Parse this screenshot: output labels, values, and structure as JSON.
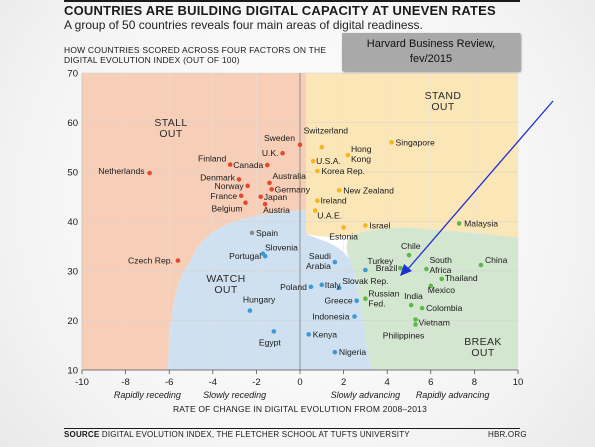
{
  "header": {
    "title": "COUNTRIES ARE BUILDING DIGITAL CAPACITY AT UNEVEN RATES",
    "subtitle": "A group of 50 countries reveals four main areas of digital readiness.",
    "axis_heading_line1": "HOW COUNTRIES SCORED ACROSS FOUR FACTORS ON THE",
    "axis_heading_line2": "DIGITAL EVOLUTION INDEX (OUT OF 100)"
  },
  "badge": {
    "line1": "Harvard Business Review,",
    "line2": "fev/2015"
  },
  "footer": {
    "source_label": "SOURCE",
    "source_text": "DIGITAL EVOLUTION INDEX, THE FLETCHER SCHOOL AT TUFTS UNIVERSITY",
    "brand": "HBR.ORG"
  },
  "chart_data": {
    "type": "scatter",
    "xlabel": "RATE OF CHANGE IN DIGITAL EVOLUTION FROM 2008–2013",
    "ylabel": "",
    "xlim": [
      -10,
      10
    ],
    "ylim": [
      10,
      70
    ],
    "x_ticks": [
      -10,
      -8,
      -6,
      -4,
      -2,
      0,
      2,
      4,
      6,
      8,
      10
    ],
    "y_ticks": [
      10,
      20,
      30,
      40,
      50,
      60,
      70
    ],
    "x_range_labels": [
      "Rapidly receding",
      "Slowly receding",
      "Slowly advancing",
      "Rapidly advancing"
    ],
    "quadrants": [
      {
        "name": "STALL OUT",
        "line1": "STALL",
        "line2": "OUT",
        "color": "#f7cfb8"
      },
      {
        "name": "STAND OUT",
        "line1": "STAND",
        "line2": "OUT",
        "color": "#fbe6b8"
      },
      {
        "name": "WATCH OUT",
        "line1": "WATCH",
        "line2": "OUT",
        "color": "#cfe0f0"
      },
      {
        "name": "BREAK OUT",
        "line1": "BREAK",
        "line2": "OUT",
        "color": "#d3e6cf"
      }
    ],
    "point_colors": {
      "stall": "#e34a2c",
      "standout": "#f5b51f",
      "watch": "#3a9ad9",
      "breakout": "#5cb848",
      "neutral": "#8c8c8c"
    },
    "points": [
      {
        "name": "Netherlands",
        "x": -6.9,
        "y": 49.8,
        "group": "stall"
      },
      {
        "name": "Czech Rep.",
        "x": -5.6,
        "y": 32.1,
        "group": "stall"
      },
      {
        "name": "Finland",
        "x": -3.2,
        "y": 51.5,
        "group": "stall"
      },
      {
        "name": "Denmark",
        "x": -2.8,
        "y": 48.5,
        "group": "stall"
      },
      {
        "name": "Norway",
        "x": -2.4,
        "y": 47.2,
        "group": "stall"
      },
      {
        "name": "Australia",
        "x": -1.4,
        "y": 47.8,
        "group": "stall"
      },
      {
        "name": "Germany",
        "x": -1.3,
        "y": 46.5,
        "group": "stall"
      },
      {
        "name": "France",
        "x": -2.7,
        "y": 45.2,
        "group": "stall"
      },
      {
        "name": "Japan",
        "x": -1.8,
        "y": 45.0,
        "group": "stall"
      },
      {
        "name": "Belgium",
        "x": -2.5,
        "y": 43.8,
        "group": "stall"
      },
      {
        "name": "Austria",
        "x": -1.6,
        "y": 43.5,
        "group": "stall"
      },
      {
        "name": "Canada",
        "x": -1.5,
        "y": 51.4,
        "group": "stall"
      },
      {
        "name": "Sweden",
        "x": 0.0,
        "y": 55.5,
        "group": "stall"
      },
      {
        "name": "U.K.",
        "x": -0.8,
        "y": 53.8,
        "group": "stall"
      },
      {
        "name": "Switzerland",
        "x": 1.0,
        "y": 55.0,
        "group": "standout"
      },
      {
        "name": "Singapore",
        "x": 4.2,
        "y": 56.0,
        "group": "standout"
      },
      {
        "name": "U.S.A.",
        "x": 0.6,
        "y": 52.2,
        "group": "standout"
      },
      {
        "name": "Hong Kong",
        "x": 2.2,
        "y": 53.4,
        "group": "standout"
      },
      {
        "name": "Korea Rep.",
        "x": 0.8,
        "y": 50.2,
        "group": "standout"
      },
      {
        "name": "New Zealand",
        "x": 1.8,
        "y": 46.3,
        "group": "standout"
      },
      {
        "name": "Ireland",
        "x": 0.8,
        "y": 44.2,
        "group": "standout"
      },
      {
        "name": "U.A.E.",
        "x": 0.7,
        "y": 42.2,
        "group": "standout"
      },
      {
        "name": "Israel",
        "x": 3.0,
        "y": 39.2,
        "group": "standout"
      },
      {
        "name": "Estonia",
        "x": 2.0,
        "y": 38.8,
        "group": "standout"
      },
      {
        "name": "Malaysia",
        "x": 7.3,
        "y": 39.6,
        "group": "breakout"
      },
      {
        "name": "Spain",
        "x": -2.2,
        "y": 37.7,
        "group": "neutral"
      },
      {
        "name": "Portugal",
        "x": -1.6,
        "y": 33.0,
        "group": "watch"
      },
      {
        "name": "Slovenia",
        "x": -1.7,
        "y": 33.5,
        "group": "watch"
      },
      {
        "name": "Saudi Arabia",
        "x": 1.6,
        "y": 31.8,
        "group": "watch"
      },
      {
        "name": "Turkey",
        "x": 3.0,
        "y": 30.2,
        "group": "watch"
      },
      {
        "name": "Poland",
        "x": 0.5,
        "y": 26.8,
        "group": "watch"
      },
      {
        "name": "Italy",
        "x": 1.0,
        "y": 27.2,
        "group": "watch"
      },
      {
        "name": "Slovak Rep.",
        "x": 1.8,
        "y": 26.6,
        "group": "watch"
      },
      {
        "name": "Greece",
        "x": 2.6,
        "y": 24.0,
        "group": "watch"
      },
      {
        "name": "Hungary",
        "x": -2.3,
        "y": 22.0,
        "group": "watch"
      },
      {
        "name": "Indonesia",
        "x": 2.5,
        "y": 20.8,
        "group": "watch"
      },
      {
        "name": "Egypt",
        "x": -1.2,
        "y": 17.8,
        "group": "watch"
      },
      {
        "name": "Kenya",
        "x": 0.4,
        "y": 17.2,
        "group": "watch"
      },
      {
        "name": "Nigeria",
        "x": 1.6,
        "y": 13.6,
        "group": "watch"
      },
      {
        "name": "Chile",
        "x": 5.0,
        "y": 33.2,
        "group": "breakout"
      },
      {
        "name": "Brazil",
        "x": 4.6,
        "y": 30.6,
        "group": "breakout"
      },
      {
        "name": "South Africa",
        "x": 5.8,
        "y": 30.4,
        "group": "breakout"
      },
      {
        "name": "China",
        "x": 8.3,
        "y": 31.2,
        "group": "breakout"
      },
      {
        "name": "Thailand",
        "x": 6.5,
        "y": 28.4,
        "group": "breakout"
      },
      {
        "name": "Mexico",
        "x": 6.0,
        "y": 27.0,
        "group": "breakout"
      },
      {
        "name": "Russian Fed.",
        "x": 3.0,
        "y": 24.4,
        "group": "breakout"
      },
      {
        "name": "India",
        "x": 5.1,
        "y": 23.1,
        "group": "breakout"
      },
      {
        "name": "Colombia",
        "x": 5.6,
        "y": 22.5,
        "group": "breakout"
      },
      {
        "name": "Vietnam",
        "x": 5.3,
        "y": 20.2,
        "group": "breakout"
      },
      {
        "name": "Philippines",
        "x": 5.3,
        "y": 19.2,
        "group": "breakout"
      }
    ]
  }
}
